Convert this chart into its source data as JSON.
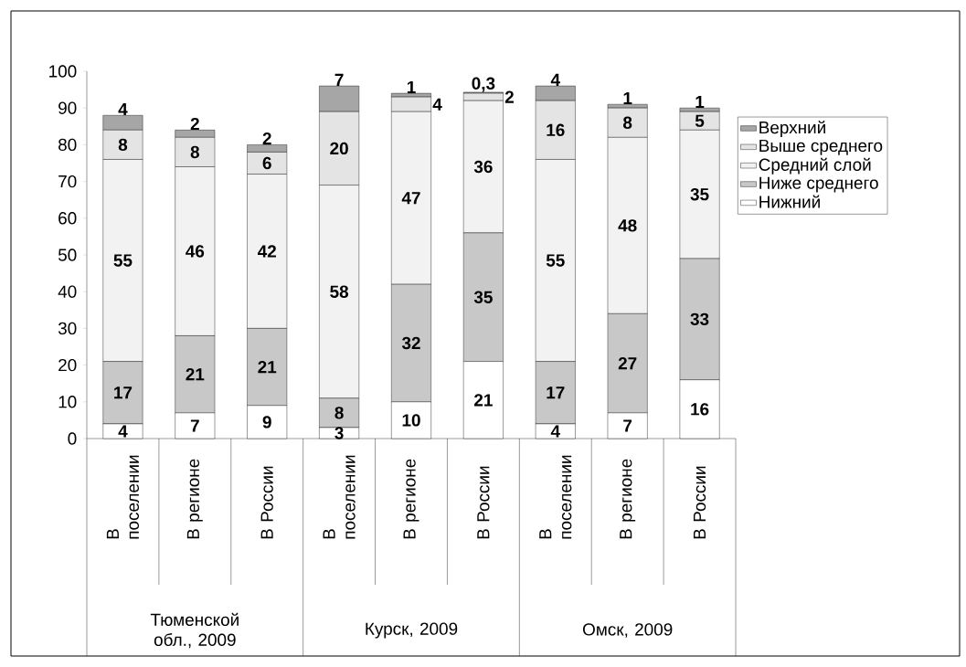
{
  "chart_data": {
    "type": "bar",
    "stacked": true,
    "categories": [
      "В поселении",
      "В регионе",
      "В России",
      "В поселении",
      "В регионе",
      "В России",
      "В поселении",
      "В регионе",
      "В России"
    ],
    "annotations": [
      "Тюменской обл., 2009",
      "Курск, 2009",
      "Омск, 2009"
    ],
    "series": [
      {
        "name": "Нижний",
        "color": "#ffffff",
        "values": [
          4,
          7,
          9,
          3,
          10,
          21,
          4,
          7,
          16
        ],
        "value_labels": [
          "4",
          "7",
          "9",
          "3",
          "10",
          "21",
          "4",
          "7",
          "16"
        ]
      },
      {
        "name": "Ниже среднего",
        "color": "#c8c8c8",
        "values": [
          17,
          21,
          21,
          8,
          32,
          35,
          17,
          27,
          33
        ],
        "value_labels": [
          "17",
          "21",
          "21",
          "8",
          "32",
          "35",
          "17",
          "27",
          "33"
        ]
      },
      {
        "name": "Средний слой",
        "color": "#f2f2f2",
        "values": [
          55,
          46,
          42,
          58,
          47,
          36,
          55,
          48,
          35
        ],
        "value_labels": [
          "55",
          "46",
          "42",
          "58",
          "47",
          "36",
          "55",
          "48",
          "35"
        ]
      },
      {
        "name": "Выше среднего",
        "color": "#e4e4e4",
        "values": [
          8,
          8,
          6,
          20,
          4,
          2,
          16,
          8,
          5
        ],
        "value_labels": [
          "8",
          "8",
          "6",
          "20",
          "4",
          "2",
          "16",
          "8",
          "5"
        ]
      },
      {
        "name": "Верхний",
        "color": "#a6a6a6",
        "values": [
          4,
          2,
          2,
          7,
          1,
          0.3,
          4,
          1,
          1
        ],
        "value_labels": [
          "4",
          "2",
          "2",
          "7",
          "1",
          "0,3",
          "4",
          "1",
          "1"
        ]
      }
    ],
    "ylim": [
      0,
      100
    ],
    "yticks": [
      0,
      10,
      20,
      30,
      40,
      50,
      60,
      70,
      80,
      90,
      100
    ],
    "legend": "right",
    "grid": false
  }
}
